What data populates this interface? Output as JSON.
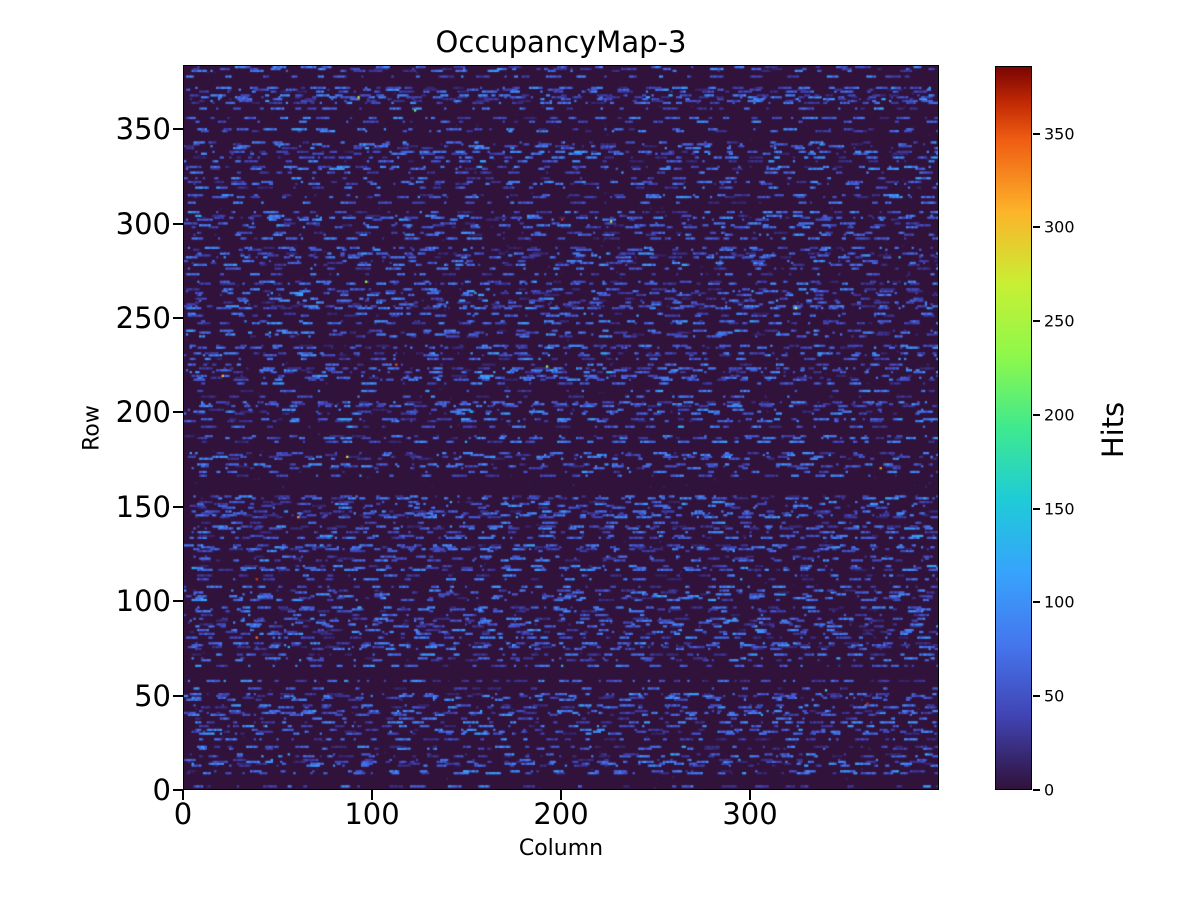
{
  "chart_data": {
    "type": "heatmap",
    "title": "OccupancyMap-3",
    "xlabel": "Column",
    "ylabel": "Row",
    "colorbar_label": "Hits",
    "x_ticks": [
      0,
      100,
      200,
      300
    ],
    "y_ticks": [
      0,
      50,
      100,
      150,
      200,
      250,
      300,
      350
    ],
    "colorbar_ticks": [
      0,
      50,
      100,
      150,
      200,
      250,
      300,
      350
    ],
    "x_range": [
      0,
      400
    ],
    "y_range": [
      0,
      384
    ],
    "value_range": [
      0,
      386
    ],
    "grid": {
      "cols": 400,
      "rows": 384
    },
    "legend_position": "colorbar-right",
    "grid_lines": false,
    "colormap": "turbo",
    "colormap_stops": [
      [
        0.0,
        "#30123b"
      ],
      [
        0.1,
        "#4143b3"
      ],
      [
        0.2,
        "#4576ee"
      ],
      [
        0.3,
        "#37a3fc"
      ],
      [
        0.4,
        "#1ecbd8"
      ],
      [
        0.5,
        "#3fe98e"
      ],
      [
        0.6,
        "#8ef84a"
      ],
      [
        0.7,
        "#c8ef34"
      ],
      [
        0.8,
        "#fdb32a"
      ],
      [
        0.9,
        "#ef5c12"
      ],
      [
        0.95,
        "#c22a04"
      ],
      [
        1.0,
        "#7a0403"
      ]
    ],
    "pattern": {
      "description": "Pixel-detector occupancy map: background cells near 0 hits (dark purple), roughly half of the rows carry short horizontal dashes of low occupancy (~15-95 hits, indigo/blue), with scattered very dim single pixels and a handful of isolated hot pixels (green/orange/red) reaching ~386 hits.",
      "seed": 42,
      "active_row_fraction": 0.5,
      "dash_value_range": [
        14,
        95
      ],
      "dash_length_range": [
        1,
        9
      ],
      "dim_value_range": [
        4,
        14
      ],
      "hot_pixel_count": 18,
      "hot_value_range": [
        140,
        386
      ],
      "background_value": 0
    }
  }
}
